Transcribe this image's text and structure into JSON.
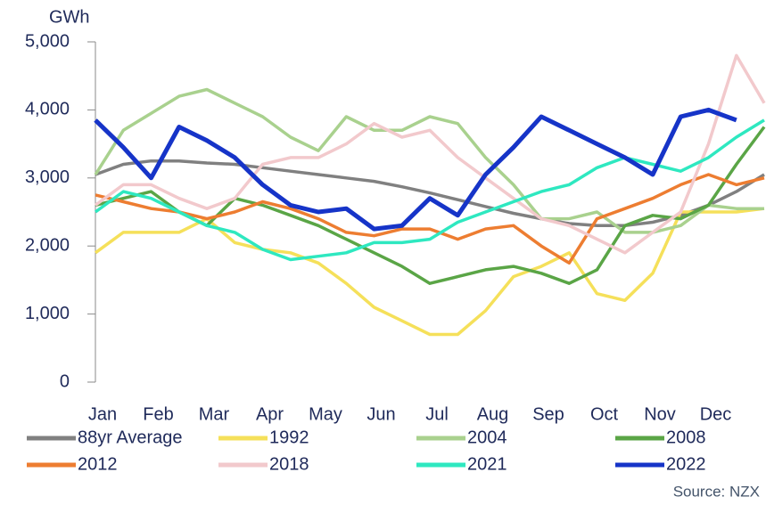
{
  "chart_data": {
    "type": "line",
    "y_label": "GWh",
    "source": "Source: NZX",
    "categories": [
      "Jan",
      null,
      "Feb",
      null,
      "Mar",
      null,
      "Apr",
      null,
      "May",
      null,
      "Jun",
      null,
      "Jul",
      null,
      "Aug",
      null,
      "Sep",
      null,
      "Oct",
      null,
      "Nov",
      null,
      "Dec",
      null,
      null
    ],
    "ylim": [
      0,
      5000
    ],
    "yticks": [
      0,
      {
        "value": 1000,
        "label": "1,000"
      },
      {
        "value": 2000,
        "label": "2,000"
      },
      {
        "value": 3000,
        "label": "3,000"
      },
      {
        "value": 4000,
        "label": "4,000"
      },
      {
        "value": 5000,
        "label": "5,000"
      }
    ],
    "series": [
      {
        "name": "88yr Average",
        "color": "#808080",
        "values": [
          3050,
          3200,
          3250,
          3250,
          3220,
          3200,
          3150,
          3100,
          3050,
          3000,
          2950,
          2870,
          2780,
          2680,
          2580,
          2480,
          2400,
          2330,
          2300,
          2300,
          2350,
          2450,
          2600,
          2800,
          3050
        ]
      },
      {
        "name": "1992",
        "color": "#f5e05a",
        "values": [
          1900,
          2200,
          2200,
          2200,
          2400,
          2050,
          1950,
          1900,
          1750,
          1450,
          1100,
          900,
          700,
          700,
          1050,
          1550,
          1700,
          1900,
          1300,
          1200,
          1600,
          2500,
          2500,
          2500,
          2550
        ]
      },
      {
        "name": "2004",
        "color": "#a9d18e",
        "values": [
          3050,
          3700,
          3950,
          4200,
          4300,
          4100,
          3900,
          3600,
          3400,
          3900,
          3700,
          3700,
          3900,
          3800,
          3300,
          2900,
          2400,
          2400,
          2500,
          2200,
          2200,
          2300,
          2600,
          2550,
          2550
        ]
      },
      {
        "name": "2008",
        "color": "#5aa546",
        "values": [
          2600,
          2700,
          2800,
          2500,
          2300,
          2700,
          2600,
          2450,
          2300,
          2100,
          1900,
          1700,
          1450,
          1550,
          1650,
          1700,
          1600,
          1450,
          1650,
          2300,
          2450,
          2400,
          2600,
          3200,
          3750
        ]
      },
      {
        "name": "2012",
        "color": "#ed7d31",
        "values": [
          2750,
          2650,
          2550,
          2500,
          2400,
          2500,
          2650,
          2550,
          2400,
          2200,
          2150,
          2250,
          2250,
          2100,
          2250,
          2300,
          2000,
          1750,
          2400,
          2550,
          2700,
          2900,
          3050,
          2900,
          3000
        ]
      },
      {
        "name": "2018",
        "color": "#f2c9cc",
        "values": [
          2600,
          2900,
          2900,
          2700,
          2550,
          2700,
          3200,
          3300,
          3300,
          3500,
          3800,
          3600,
          3700,
          3300,
          3000,
          2700,
          2400,
          2300,
          2100,
          1900,
          2200,
          2500,
          3500,
          4800,
          4100
        ]
      },
      {
        "name": "2021",
        "color": "#2ee8c0",
        "values": [
          2500,
          2800,
          2700,
          2500,
          2300,
          2200,
          1950,
          1800,
          1850,
          1900,
          2050,
          2050,
          2100,
          2350,
          2500,
          2650,
          2800,
          2900,
          3150,
          3300,
          3200,
          3100,
          3300,
          3600,
          3850
        ]
      },
      {
        "name": "2022",
        "color": "#1634c8",
        "values": [
          3850,
          3450,
          3000,
          3750,
          3550,
          3300,
          2900,
          2600,
          2500,
          2550,
          2250,
          2300,
          2700,
          2450,
          3050,
          3450,
          3900,
          3700,
          3500,
          3300,
          3050,
          3900,
          4000,
          3850,
          null
        ]
      }
    ]
  }
}
